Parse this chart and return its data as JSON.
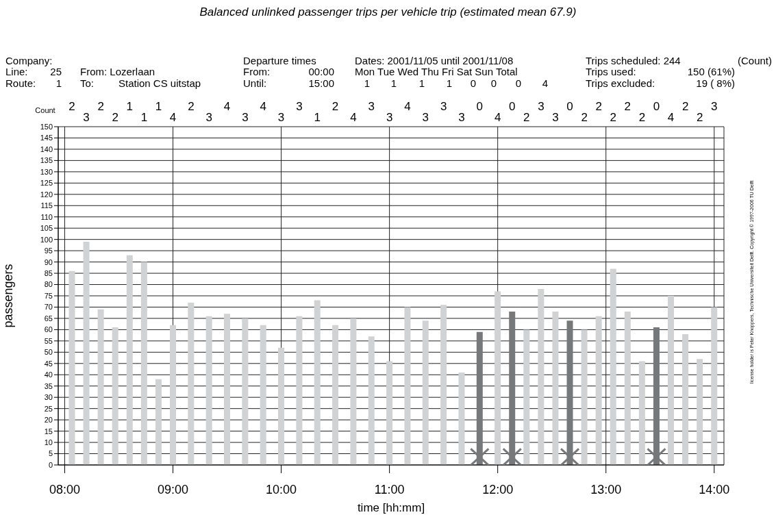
{
  "chart_data": {
    "type": "bar",
    "title": "Balanced unlinked passenger trips per vehicle trip (estimated mean 67.9)",
    "xlabel": "time [hh:mm]",
    "ylabel": "passengers",
    "series": [
      {
        "x": [
          8.0667,
          8.2,
          8.3333,
          8.4667,
          8.6,
          8.7333,
          8.8667,
          9,
          9.1667,
          9.3333,
          9.5,
          9.6667,
          9.8333,
          10,
          10.1667,
          10.3333,
          10.5,
          10.6667,
          10.8333,
          11,
          11.1667,
          11.3333,
          11.5,
          11.6667,
          11.8333,
          12,
          12.1333,
          12.2667,
          12.4,
          12.5333,
          12.6667,
          12.8,
          12.9333,
          13.0667,
          13.2,
          13.3333,
          13.4667,
          13.6,
          13.7333,
          13.8667,
          14
        ],
        "values": [
          86,
          99,
          69,
          61,
          93,
          90,
          38,
          62,
          72,
          66,
          67,
          65,
          62,
          52,
          66,
          73,
          62,
          65,
          57,
          46,
          70,
          64,
          71,
          41,
          59,
          77,
          68,
          60,
          78,
          68,
          64,
          60,
          66,
          87,
          68,
          46,
          61,
          75,
          58,
          47,
          70
        ],
        "colors": [
          "#d1d2d4",
          "#d1d2d4",
          "#d1d2d4",
          "#d1d2d4",
          "#d1d2d4",
          "#d1d2d4",
          "#d1d2d4",
          "#d1d2d4",
          "#d1d2d4",
          "#d1d2d4",
          "#d1d2d4",
          "#d1d2d4",
          "#d1d2d4",
          "#d1d2d4",
          "#d1d2d4",
          "#d1d2d4",
          "#d1d2d4",
          "#d1d2d4",
          "#d1d2d4",
          "#d1d2d4",
          "#d1d2d4",
          "#d1d2d4",
          "#d1d2d4",
          "#d1d2d4",
          "#77787a",
          "#d1d2d4",
          "#77787a",
          "#d1d2d4",
          "#d1d2d4",
          "#d1d2d4",
          "#77787a",
          "#d1d2d4",
          "#d1d2d4",
          "#d1d2d4",
          "#d1d2d4",
          "#d1d2d4",
          "#77787a",
          "#d1d2d4",
          "#d1d2d4",
          "#d1d2d4",
          "#d1d2d4"
        ]
      },
      {
        "type": "scatter",
        "x": [
          11.8333,
          12.1333,
          12.6667,
          13.4667
        ],
        "values": [
          3.5,
          3.5,
          3.5,
          3.5
        ],
        "color": "#77787a",
        "marker": "cross"
      }
    ],
    "xlim": [
      7.94,
      14.09
    ],
    "xticks": [
      {
        "value": 8,
        "label": "08:00"
      },
      {
        "value": 9,
        "label": "09:00"
      },
      {
        "value": 10,
        "label": "10:00"
      },
      {
        "value": 11,
        "label": "11:00"
      },
      {
        "value": 12,
        "label": "12:00"
      },
      {
        "value": 13,
        "label": "13:00"
      },
      {
        "value": 14,
        "label": "14:00"
      }
    ],
    "ylim": [
      0,
      150
    ],
    "yticks": [
      0,
      5,
      10,
      15,
      20,
      25,
      30,
      35,
      40,
      45,
      50,
      55,
      60,
      65,
      70,
      75,
      80,
      85,
      90,
      95,
      100,
      105,
      110,
      115,
      120,
      125,
      130,
      135,
      140,
      145,
      150
    ],
    "grid": true,
    "annotations": [
      "Company:",
      "Departure times",
      "Dates: 2001/11/05 until 2001/11/08",
      "Trips scheduled: 244",
      "(Count)",
      "Line:",
      "25",
      "From: Lozerlaan",
      "From:",
      "00:00",
      "Mon Tue Wed Thu Fri Sat Sun Total",
      "Trips used:",
      "150 (61%)",
      "Route:",
      "1",
      "To:",
      "Station CS uitstap",
      "Until:",
      "15:00",
      "1",
      "1",
      "1",
      "1",
      "0",
      "0",
      "0",
      "4",
      "Trips excluded:",
      "19 ( 8%)",
      "Count",
      "license holder is Peter Knoppers, Technische Universiteit Delft. Copyright © 1997-2006 TU Delft",
      "2",
      "3",
      "2",
      "2",
      "1",
      "1",
      "1",
      "4",
      "2",
      "3",
      "4",
      "3",
      "4",
      "3",
      "3",
      "1",
      "2",
      "4",
      "3",
      "3",
      "4",
      "3",
      "3",
      "3",
      "0",
      "4",
      "0",
      "2",
      "3",
      "3",
      "0",
      "2",
      "2",
      "2",
      "2",
      "2",
      "0",
      "4",
      "2",
      "2",
      "3"
    ]
  }
}
